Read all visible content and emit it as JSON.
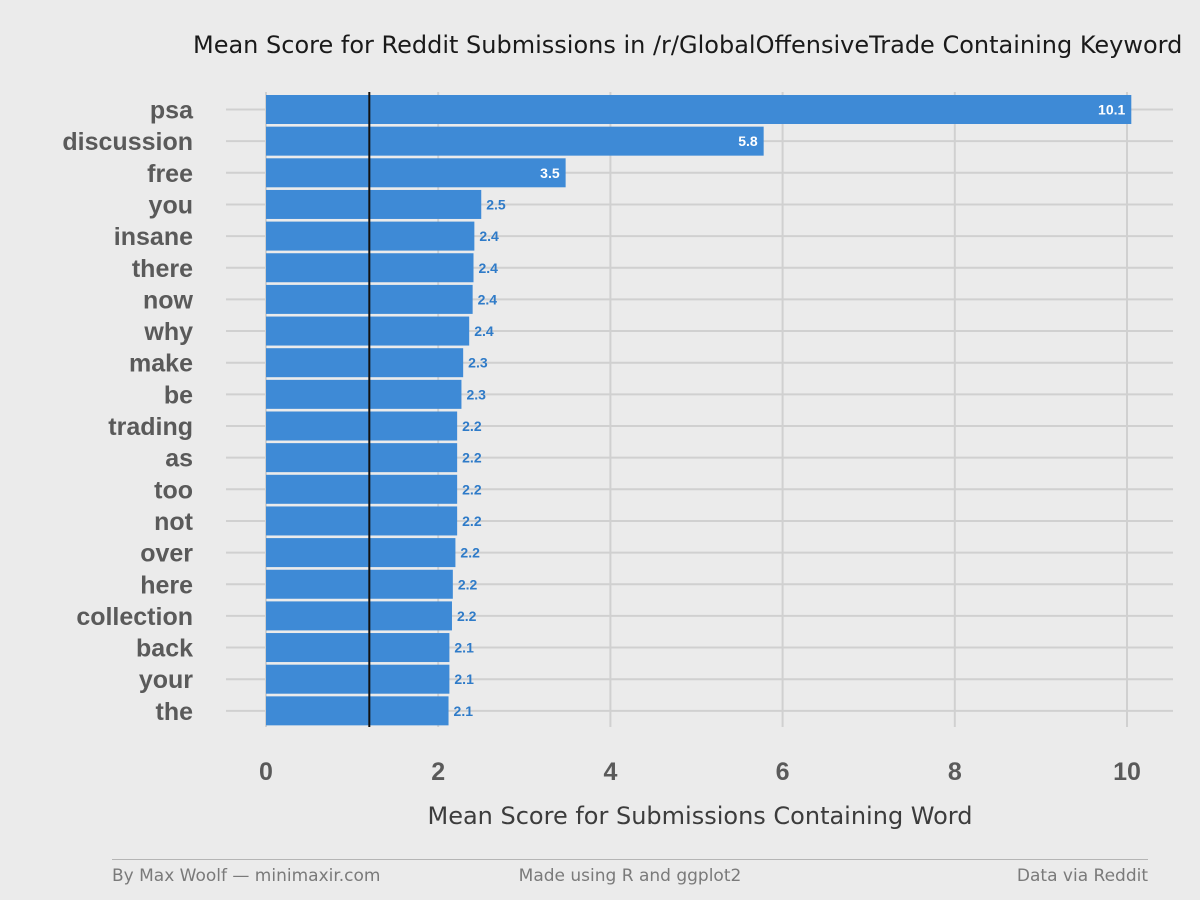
{
  "chart_data": {
    "type": "bar",
    "orientation": "horizontal",
    "title": "Mean Score for Reddit Submissions in /r/GlobalOffensiveTrade Containing Keyword",
    "xlabel": "Mean Score for Submissions Containing Word",
    "ylabel": "",
    "categories": [
      "psa",
      "discussion",
      "free",
      "you",
      "insane",
      "there",
      "now",
      "why",
      "make",
      "be",
      "trading",
      "as",
      "too",
      "not",
      "over",
      "here",
      "collection",
      "back",
      "your",
      "the"
    ],
    "values": [
      10.05,
      5.78,
      3.48,
      2.5,
      2.42,
      2.41,
      2.4,
      2.36,
      2.29,
      2.27,
      2.22,
      2.22,
      2.22,
      2.22,
      2.2,
      2.17,
      2.16,
      2.13,
      2.13,
      2.12
    ],
    "data_labels": [
      "10.1",
      "5.8",
      "3.5",
      "2.5",
      "2.4",
      "2.4",
      "2.4",
      "2.4",
      "2.3",
      "2.3",
      "2.2",
      "2.2",
      "2.2",
      "2.2",
      "2.2",
      "2.2",
      "2.2",
      "2.1",
      "2.1",
      "2.1"
    ],
    "xlim": [
      0,
      10.5
    ],
    "x_ticks": [
      0,
      2,
      4,
      6,
      8,
      10
    ],
    "x_tick_labels": [
      "0",
      "2",
      "4",
      "6",
      "8",
      "10"
    ],
    "reference_line": 1.2,
    "grid": true,
    "bar_color": "#3e8ad6",
    "label_inside_color": "#ffffff",
    "label_outside_color": "#2f7bc8"
  },
  "footer": {
    "left": "By Max Woolf — minimaxir.com",
    "center": "Made using R and ggplot2",
    "right": "Data via Reddit"
  },
  "colors": {
    "background": "#ebebeb",
    "grid": "#d0d0d0",
    "reference_line": "#111111"
  }
}
